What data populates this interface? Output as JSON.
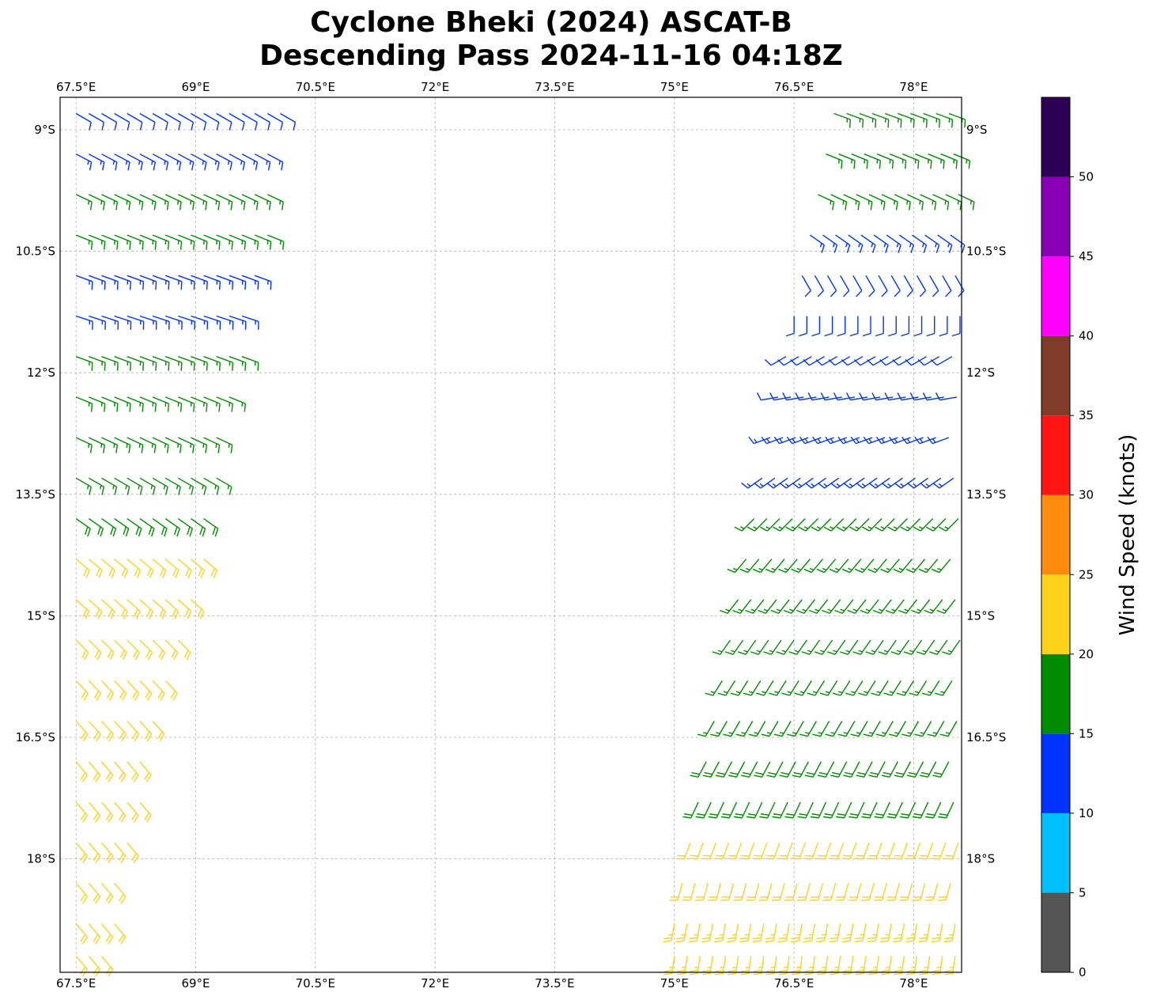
{
  "chart_data": {
    "type": "wind-barb map",
    "title_line1": "Cyclone Bheki (2024) ASCAT-B",
    "title_line2": "Descending Pass 2024-11-16 04:18Z",
    "lon_range": [
      67.3,
      78.6
    ],
    "lat_range": [
      -8.6,
      -19.4
    ],
    "x_ticks": [
      "67.5°E",
      "69°E",
      "70.5°E",
      "72°E",
      "73.5°E",
      "75°E",
      "76.5°E",
      "78°E"
    ],
    "x_tick_values": [
      67.5,
      69,
      70.5,
      72,
      73.5,
      75,
      76.5,
      78
    ],
    "y_ticks": [
      "9°S",
      "10.5°S",
      "12°S",
      "13.5°S",
      "15°S",
      "16.5°S",
      "18°S"
    ],
    "y_tick_values": [
      -9,
      -10.5,
      -12,
      -13.5,
      -15,
      -16.5,
      -18
    ],
    "grid": true,
    "colorbar": {
      "label": "Wind Speed (knots)",
      "range": [
        0,
        55
      ],
      "ticks": [
        "0",
        "5",
        "10",
        "15",
        "20",
        "25",
        "30",
        "35",
        "40",
        "45",
        "50"
      ],
      "bins": [
        {
          "min": 0,
          "max": 5,
          "color": "#555555"
        },
        {
          "min": 5,
          "max": 10,
          "color": "#00bfff"
        },
        {
          "min": 10,
          "max": 15,
          "color": "#0033ff"
        },
        {
          "min": 15,
          "max": 20,
          "color": "#008c00"
        },
        {
          "min": 20,
          "max": 25,
          "color": "#ffd21a"
        },
        {
          "min": 25,
          "max": 30,
          "color": "#ff8c0d"
        },
        {
          "min": 30,
          "max": 35,
          "color": "#ff1414"
        },
        {
          "min": 35,
          "max": 40,
          "color": "#7f3d29"
        },
        {
          "min": 40,
          "max": 45,
          "color": "#ff00ff"
        },
        {
          "min": 45,
          "max": 50,
          "color": "#8800b3"
        },
        {
          "min": 50,
          "max": 55,
          "color": "#2b0055"
        }
      ]
    },
    "swaths": [
      {
        "name": "west",
        "rows": [
          {
            "lat": -8.8,
            "lon_start": 67.5,
            "lon_end": 70.1,
            "speed": 12,
            "dir": 120
          },
          {
            "lat": -9.3,
            "lon_start": 67.5,
            "lon_end": 70.0,
            "speed": 13,
            "dir": 118
          },
          {
            "lat": -9.8,
            "lon_start": 67.5,
            "lon_end": 69.9,
            "speed": 16,
            "dir": 115
          },
          {
            "lat": -10.3,
            "lon_start": 67.5,
            "lon_end": 69.9,
            "speed": 16,
            "dir": 112
          },
          {
            "lat": -10.8,
            "lon_start": 67.5,
            "lon_end": 69.8,
            "speed": 13,
            "dir": 110
          },
          {
            "lat": -11.3,
            "lon_start": 67.5,
            "lon_end": 69.7,
            "speed": 14,
            "dir": 108
          },
          {
            "lat": -11.8,
            "lon_start": 67.5,
            "lon_end": 69.6,
            "speed": 16,
            "dir": 110
          },
          {
            "lat": -12.3,
            "lon_start": 67.5,
            "lon_end": 69.5,
            "speed": 17,
            "dir": 112
          },
          {
            "lat": -12.8,
            "lon_start": 67.5,
            "lon_end": 69.4,
            "speed": 17,
            "dir": 115
          },
          {
            "lat": -13.3,
            "lon_start": 67.5,
            "lon_end": 69.3,
            "speed": 17,
            "dir": 120
          },
          {
            "lat": -13.8,
            "lon_start": 67.5,
            "lon_end": 69.2,
            "speed": 18,
            "dir": 125
          },
          {
            "lat": -14.3,
            "lon_start": 67.5,
            "lon_end": 69.1,
            "speed": 21,
            "dir": 130
          },
          {
            "lat": -14.8,
            "lon_start": 67.5,
            "lon_end": 69.0,
            "speed": 22,
            "dir": 132
          },
          {
            "lat": -15.3,
            "lon_start": 67.5,
            "lon_end": 68.8,
            "speed": 22,
            "dir": 135
          },
          {
            "lat": -15.8,
            "lon_start": 67.5,
            "lon_end": 68.7,
            "speed": 22,
            "dir": 137
          },
          {
            "lat": -16.3,
            "lon_start": 67.5,
            "lon_end": 68.6,
            "speed": 22,
            "dir": 138
          },
          {
            "lat": -16.8,
            "lon_start": 67.5,
            "lon_end": 68.4,
            "speed": 22,
            "dir": 140
          },
          {
            "lat": -17.3,
            "lon_start": 67.5,
            "lon_end": 68.3,
            "speed": 22,
            "dir": 140
          },
          {
            "lat": -17.8,
            "lon_start": 67.5,
            "lon_end": 68.2,
            "speed": 22,
            "dir": 140
          },
          {
            "lat": -18.3,
            "lon_start": 67.5,
            "lon_end": 68.1,
            "speed": 22,
            "dir": 140
          },
          {
            "lat": -18.8,
            "lon_start": 67.5,
            "lon_end": 68.0,
            "speed": 22,
            "dir": 140
          },
          {
            "lat": -19.2,
            "lon_start": 67.5,
            "lon_end": 67.9,
            "speed": 22,
            "dir": 140
          }
        ]
      },
      {
        "name": "east",
        "rows": [
          {
            "lat": -8.8,
            "lon_start": 77.0,
            "lon_end": 78.6,
            "speed": 17,
            "dir": 110
          },
          {
            "lat": -9.3,
            "lon_start": 76.9,
            "lon_end": 78.6,
            "speed": 17,
            "dir": 112
          },
          {
            "lat": -9.8,
            "lon_start": 76.8,
            "lon_end": 78.6,
            "speed": 17,
            "dir": 115
          },
          {
            "lat": -10.3,
            "lon_start": 76.7,
            "lon_end": 78.6,
            "speed": 13,
            "dir": 125
          },
          {
            "lat": -10.8,
            "lon_start": 76.6,
            "lon_end": 78.6,
            "speed": 12,
            "dir": 150
          },
          {
            "lat": -11.3,
            "lon_start": 76.5,
            "lon_end": 78.6,
            "speed": 12,
            "dir": 180
          },
          {
            "lat": -11.8,
            "lon_start": 76.4,
            "lon_end": 78.6,
            "speed": 12,
            "dir": 240
          },
          {
            "lat": -12.3,
            "lon_start": 76.3,
            "lon_end": 78.6,
            "speed": 12,
            "dir": 260
          },
          {
            "lat": -12.8,
            "lon_start": 76.2,
            "lon_end": 78.6,
            "speed": 13,
            "dir": 250
          },
          {
            "lat": -13.3,
            "lon_start": 76.1,
            "lon_end": 78.6,
            "speed": 14,
            "dir": 235
          },
          {
            "lat": -13.8,
            "lon_start": 76.0,
            "lon_end": 78.6,
            "speed": 15,
            "dir": 225
          },
          {
            "lat": -14.3,
            "lon_start": 75.9,
            "lon_end": 78.6,
            "speed": 16,
            "dir": 220
          },
          {
            "lat": -14.8,
            "lon_start": 75.8,
            "lon_end": 78.6,
            "speed": 16,
            "dir": 218
          },
          {
            "lat": -15.3,
            "lon_start": 75.7,
            "lon_end": 78.6,
            "speed": 17,
            "dir": 215
          },
          {
            "lat": -15.8,
            "lon_start": 75.6,
            "lon_end": 78.6,
            "speed": 17,
            "dir": 212
          },
          {
            "lat": -16.3,
            "lon_start": 75.5,
            "lon_end": 78.6,
            "speed": 17,
            "dir": 210
          },
          {
            "lat": -16.8,
            "lon_start": 75.4,
            "lon_end": 78.6,
            "speed": 18,
            "dir": 208
          },
          {
            "lat": -17.3,
            "lon_start": 75.3,
            "lon_end": 78.6,
            "speed": 18,
            "dir": 205
          },
          {
            "lat": -17.8,
            "lon_start": 75.2,
            "lon_end": 78.6,
            "speed": 21,
            "dir": 200
          },
          {
            "lat": -18.3,
            "lon_start": 75.1,
            "lon_end": 78.6,
            "speed": 22,
            "dir": 195
          },
          {
            "lat": -18.8,
            "lon_start": 75.0,
            "lon_end": 78.6,
            "speed": 23,
            "dir": 190
          },
          {
            "lat": -19.2,
            "lon_start": 75.0,
            "lon_end": 78.6,
            "speed": 24,
            "dir": 188
          }
        ]
      }
    ]
  }
}
